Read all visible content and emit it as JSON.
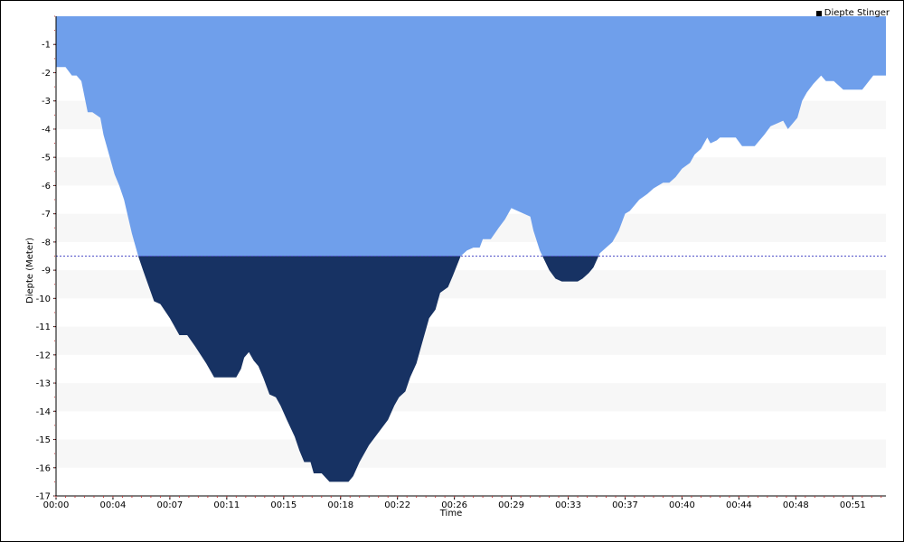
{
  "chart_data": {
    "type": "area",
    "title": "",
    "xlabel": "Time",
    "ylabel": "Diepte (Meter)",
    "legend": {
      "placement": "top-right",
      "entries": [
        "Diepte Stinger"
      ]
    },
    "xlim": [
      0,
      52.5
    ],
    "ylim": [
      -17,
      0
    ],
    "x_ticks": [
      {
        "v": 0,
        "label": "00:00"
      },
      {
        "v": 3.6,
        "label": "00:04"
      },
      {
        "v": 7.2,
        "label": "00:07"
      },
      {
        "v": 10.8,
        "label": "00:11"
      },
      {
        "v": 14.4,
        "label": "00:15"
      },
      {
        "v": 18.0,
        "label": "00:18"
      },
      {
        "v": 21.6,
        "label": "00:22"
      },
      {
        "v": 25.2,
        "label": "00:26"
      },
      {
        "v": 28.8,
        "label": "00:29"
      },
      {
        "v": 32.4,
        "label": "00:33"
      },
      {
        "v": 36.0,
        "label": "00:37"
      },
      {
        "v": 39.6,
        "label": "00:40"
      },
      {
        "v": 43.2,
        "label": "00:44"
      },
      {
        "v": 46.8,
        "label": "00:48"
      },
      {
        "v": 50.4,
        "label": "00:51"
      }
    ],
    "y_ticks": [
      -1,
      -2,
      -3,
      -4,
      -5,
      -6,
      -7,
      -8,
      -9,
      -10,
      -11,
      -12,
      -13,
      -14,
      -15,
      -16,
      -17
    ],
    "threshold": -8.5,
    "colors": {
      "above_threshold": "#6f9feb",
      "below_threshold": "#173263",
      "threshold_line": "#5050c8",
      "band": "#f7f7f7"
    },
    "series": [
      {
        "name": "Diepte Stinger",
        "x": [
          0,
          0.6,
          1.0,
          1.3,
          1.6,
          2.0,
          2.3,
          2.8,
          3.0,
          3.4,
          3.7,
          4.0,
          4.3,
          4.8,
          5.2,
          5.5,
          6.2,
          6.6,
          7.2,
          7.8,
          8.3,
          8.8,
          9.5,
          10.0,
          11.4,
          11.7,
          11.9,
          12.2,
          12.5,
          12.8,
          13.1,
          13.5,
          13.9,
          14.2,
          14.6,
          15.1,
          15.4,
          15.7,
          16.1,
          16.3,
          16.8,
          17.3,
          17.6,
          18.5,
          18.8,
          19.2,
          19.8,
          21.0,
          21.4,
          21.7,
          22.1,
          22.4,
          22.8,
          23.1,
          23.6,
          24.0,
          24.3,
          24.8,
          25.1,
          25.6,
          26.0,
          26.4,
          26.8,
          27.0,
          27.5,
          28.0,
          28.4,
          28.8,
          30.0,
          30.2,
          30.6,
          31.2,
          31.6,
          32.0,
          33.0,
          33.3,
          33.7,
          34.0,
          34.4,
          34.8,
          35.2,
          35.6,
          36.0,
          36.3,
          36.9,
          37.4,
          37.8,
          38.4,
          38.8,
          39.2,
          39.6,
          40.1,
          40.4,
          40.8,
          41.2,
          41.4,
          41.8,
          42.0,
          43.0,
          43.4,
          44.2,
          44.8,
          45.2,
          45.6,
          46.0,
          46.3,
          46.6,
          46.9,
          47.2,
          47.5,
          47.9,
          48.4,
          48.7,
          49.2,
          49.8,
          50.0,
          51.0,
          51.7,
          52.2,
          52.5
        ],
        "y": [
          -1.8,
          -1.8,
          -2.1,
          -2.1,
          -2.3,
          -3.4,
          -3.4,
          -3.6,
          -4.2,
          -5.0,
          -5.6,
          -6.0,
          -6.5,
          -7.7,
          -8.5,
          -9.0,
          -10.1,
          -10.2,
          -10.7,
          -11.3,
          -11.3,
          -11.7,
          -12.3,
          -12.8,
          -12.8,
          -12.5,
          -12.1,
          -11.9,
          -12.2,
          -12.4,
          -12.8,
          -13.4,
          -13.5,
          -13.8,
          -14.3,
          -14.9,
          -15.4,
          -15.8,
          -15.8,
          -16.2,
          -16.2,
          -16.5,
          -16.5,
          -16.5,
          -16.3,
          -15.8,
          -15.2,
          -14.3,
          -13.8,
          -13.5,
          -13.3,
          -12.8,
          -12.3,
          -11.7,
          -10.7,
          -10.4,
          -9.8,
          -9.6,
          -9.2,
          -8.5,
          -8.3,
          -8.2,
          -8.2,
          -7.9,
          -7.9,
          -7.5,
          -7.2,
          -6.8,
          -7.1,
          -7.6,
          -8.3,
          -9.0,
          -9.3,
          -9.4,
          -9.4,
          -9.3,
          -9.1,
          -8.9,
          -8.4,
          -8.2,
          -8.0,
          -7.6,
          -7.0,
          -6.9,
          -6.5,
          -6.3,
          -6.1,
          -5.9,
          -5.9,
          -5.7,
          -5.4,
          -5.2,
          -4.9,
          -4.7,
          -4.3,
          -4.5,
          -4.4,
          -4.3,
          -4.3,
          -4.6,
          -4.6,
          -4.2,
          -3.9,
          -3.8,
          -3.7,
          -4.0,
          -3.8,
          -3.6,
          -3.0,
          -2.7,
          -2.4,
          -2.1,
          -2.3,
          -2.3,
          -2.6,
          -2.6,
          -2.6,
          -2.1,
          -2.1,
          -2.1
        ]
      }
    ]
  }
}
